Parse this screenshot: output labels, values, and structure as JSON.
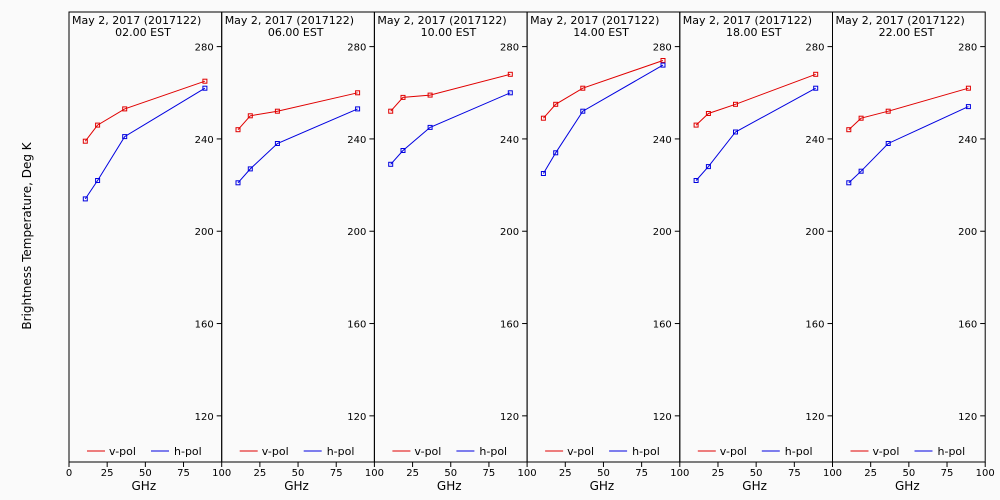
{
  "chart_data": {
    "type": "line",
    "y_label": "Brightness Temperature, Deg K",
    "x_label": "GHz",
    "xlim": [
      0,
      100
    ],
    "ylim": [
      100,
      295
    ],
    "y_ticks": [
      120,
      160,
      200,
      240,
      280
    ],
    "x_ticks_first": [
      0,
      25,
      50,
      75,
      100
    ],
    "x_ticks_other": [
      25,
      50,
      75,
      100
    ],
    "series_names": [
      "v-pol",
      "h-pol"
    ],
    "colors": {
      "v-pol": "#e00000",
      "h-pol": "#0000e0"
    },
    "legend_position": "bottom",
    "x": [
      10.65,
      18.7,
      36.5,
      89.0
    ],
    "panels": [
      {
        "date": "May  2, 2017 (2017122)",
        "time": "02.00 EST",
        "series": [
          {
            "name": "v-pol",
            "values": [
              239,
              246,
              253,
              265
            ]
          },
          {
            "name": "h-pol",
            "values": [
              214,
              222,
              241,
              262
            ]
          }
        ]
      },
      {
        "date": "May  2, 2017 (2017122)",
        "time": "06.00 EST",
        "series": [
          {
            "name": "v-pol",
            "values": [
              244,
              250,
              252,
              260
            ]
          },
          {
            "name": "h-pol",
            "values": [
              221,
              227,
              238,
              253
            ]
          }
        ]
      },
      {
        "date": "May  2, 2017 (2017122)",
        "time": "10.00 EST",
        "series": [
          {
            "name": "v-pol",
            "values": [
              252,
              258,
              259,
              268
            ]
          },
          {
            "name": "h-pol",
            "values": [
              229,
              235,
              245,
              260
            ]
          }
        ]
      },
      {
        "date": "May  2, 2017 (2017122)",
        "time": "14.00 EST",
        "series": [
          {
            "name": "v-pol",
            "values": [
              249,
              255,
              262,
              274
            ]
          },
          {
            "name": "h-pol",
            "values": [
              225,
              234,
              252,
              272
            ]
          }
        ]
      },
      {
        "date": "May  2, 2017 (2017122)",
        "time": "18.00 EST",
        "series": [
          {
            "name": "v-pol",
            "values": [
              246,
              251,
              255,
              268
            ]
          },
          {
            "name": "h-pol",
            "values": [
              222,
              228,
              243,
              262
            ]
          }
        ]
      },
      {
        "date": "May  2, 2017 (2017122)",
        "time": "22.00 EST",
        "series": [
          {
            "name": "v-pol",
            "values": [
              244,
              249,
              252,
              262
            ]
          },
          {
            "name": "h-pol",
            "values": [
              221,
              226,
              238,
              254
            ]
          }
        ]
      }
    ]
  }
}
